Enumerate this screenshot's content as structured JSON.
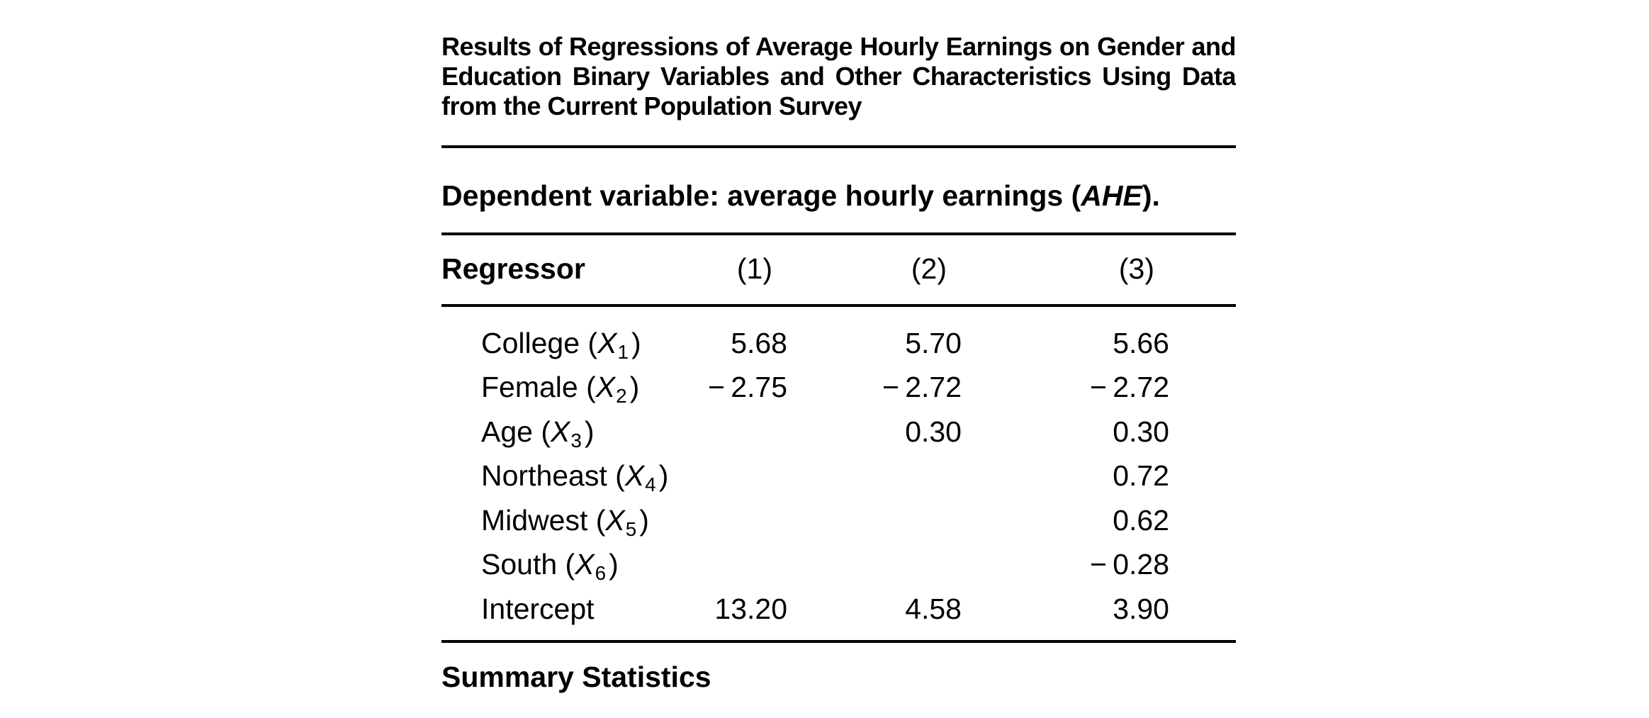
{
  "title": {
    "full": "Results of Regressions of Average Hourly Earnings on Gender and Education Binary Variables and Other Characteristics Using Data from the Current Population Survey",
    "lines": [
      "Results of Regressions of Average Hourly Earnings on Gender and",
      "Education Binary Variables and Other Characteristics Using Data",
      "from the Current Population Survey"
    ]
  },
  "dependent_line": {
    "prefix": "Dependent variable: average hourly earnings (",
    "variable": "AHE",
    "suffix": ")."
  },
  "table": {
    "header": {
      "regressor_label": "Regressor",
      "columns": [
        "(1)",
        "(2)",
        "(3)"
      ]
    },
    "rows": [
      {
        "label_prefix": "College (",
        "symbol": "X",
        "subscript": "1",
        "label_suffix": ")",
        "values": [
          "5.68",
          "5.70",
          "5.66"
        ]
      },
      {
        "label_prefix": "Female (",
        "symbol": "X",
        "subscript": "2",
        "label_suffix": ")",
        "values": [
          "− 2.75",
          "− 2.72",
          "− 2.72"
        ]
      },
      {
        "label_prefix": "Age (",
        "symbol": "X",
        "subscript": "3",
        "label_suffix": ")",
        "values": [
          "",
          "0.30",
          "0.30"
        ]
      },
      {
        "label_prefix": "Northeast (",
        "symbol": "X",
        "subscript": "4",
        "label_suffix": ")",
        "values": [
          "",
          "",
          "0.72"
        ]
      },
      {
        "label_prefix": "Midwest (",
        "symbol": "X",
        "subscript": "5",
        "label_suffix": ")",
        "values": [
          "",
          "",
          "0.62"
        ]
      },
      {
        "label_prefix": "South (",
        "symbol": "X",
        "subscript": "6",
        "label_suffix": ")",
        "values": [
          "",
          "",
          "− 0.28"
        ]
      },
      {
        "label_prefix": "Intercept",
        "symbol": "",
        "subscript": "",
        "label_suffix": "",
        "values": [
          "13.20",
          "4.58",
          "3.90"
        ]
      }
    ]
  },
  "summary_heading": "Summary Statistics",
  "colors": {
    "text": "#000000",
    "background": "#ffffff",
    "rule": "#000000"
  }
}
